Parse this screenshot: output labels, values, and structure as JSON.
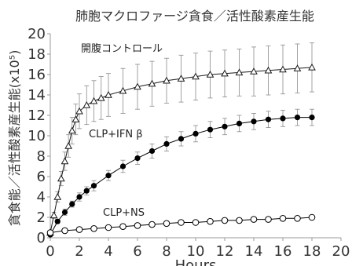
{
  "chart_data": {
    "type": "line",
    "title": "肺胞マクロファージ貪食／活性酸素産生能",
    "xlabel": "Hours",
    "ylabel": "貪食能／活性酸素産生能(x10⁵)",
    "xlim": [
      0,
      20
    ],
    "ylim": [
      0,
      20
    ],
    "xticks": [
      "0",
      "2",
      "4",
      "6",
      "8",
      "10",
      "12",
      "14",
      "16",
      "18",
      "20"
    ],
    "yticks": [
      "0",
      "2",
      "4",
      "6",
      "8",
      "10",
      "12",
      "14",
      "16",
      "18",
      "20"
    ],
    "grid": false,
    "legend": "none",
    "series": [
      {
        "name": "開腹コントロール",
        "marker": "open-triangle",
        "color": "#1a1a1a",
        "x": [
          0,
          0.25,
          0.5,
          0.75,
          1,
          1.25,
          1.5,
          1.75,
          2,
          2.5,
          3,
          3.5,
          4,
          5,
          6,
          7,
          8,
          9,
          10,
          11,
          12,
          13,
          14,
          15,
          16,
          17,
          18
        ],
        "y": [
          0.5,
          2.2,
          4.0,
          5.8,
          7.5,
          9.0,
          10.5,
          11.6,
          12.4,
          13.0,
          13.4,
          13.7,
          14.0,
          14.4,
          14.8,
          15.1,
          15.4,
          15.6,
          15.8,
          16.0,
          16.1,
          16.2,
          16.3,
          16.4,
          16.5,
          16.6,
          16.7
        ],
        "err": [
          0.1,
          0.3,
          0.5,
          0.7,
          0.9,
          1.1,
          1.3,
          1.5,
          1.7,
          1.9,
          2.0,
          2.1,
          2.1,
          2.2,
          2.2,
          2.2,
          2.2,
          2.3,
          2.3,
          2.3,
          2.3,
          2.3,
          2.4,
          2.4,
          2.4,
          2.4,
          2.4
        ]
      },
      {
        "name": "CLP+IFN β",
        "marker": "filled-circle",
        "color": "#000000",
        "x": [
          0,
          0.5,
          1,
          1.5,
          2,
          2.5,
          3,
          4,
          5,
          6,
          7,
          8,
          9,
          10,
          11,
          12,
          13,
          14,
          15,
          16,
          17,
          18
        ],
        "y": [
          0.3,
          1.6,
          2.5,
          3.3,
          4.0,
          4.6,
          5.1,
          6.1,
          7.0,
          7.8,
          8.5,
          9.2,
          9.7,
          10.2,
          10.6,
          10.9,
          11.2,
          11.4,
          11.6,
          11.7,
          11.8,
          11.8
        ],
        "err": [
          0.1,
          0.2,
          0.3,
          0.3,
          0.4,
          0.4,
          0.5,
          0.5,
          0.6,
          0.6,
          0.7,
          0.7,
          0.7,
          0.8,
          0.8,
          0.8,
          0.8,
          0.8,
          0.8,
          0.8,
          0.8,
          0.8
        ]
      },
      {
        "name": "CLP+NS",
        "marker": "open-circle",
        "color": "#000000",
        "x": [
          0,
          1,
          2,
          3,
          4,
          5,
          6,
          7,
          8,
          9,
          10,
          11,
          12,
          13,
          14,
          15,
          16,
          17,
          18
        ],
        "y": [
          0.5,
          0.7,
          0.8,
          0.9,
          1.0,
          1.1,
          1.2,
          1.3,
          1.4,
          1.5,
          1.5,
          1.6,
          1.7,
          1.7,
          1.8,
          1.8,
          1.9,
          1.9,
          2.0
        ],
        "err": [
          0.05,
          0.1,
          0.1,
          0.1,
          0.1,
          0.1,
          0.15,
          0.15,
          0.15,
          0.15,
          0.15,
          0.15,
          0.2,
          0.2,
          0.2,
          0.2,
          0.2,
          0.2,
          0.2
        ]
      }
    ],
    "annotations": [
      {
        "text": "開腹コントロール",
        "series": 0
      },
      {
        "text": "CLP+IFN β",
        "series": 1
      },
      {
        "text": "CLP+NS",
        "series": 2
      }
    ]
  }
}
